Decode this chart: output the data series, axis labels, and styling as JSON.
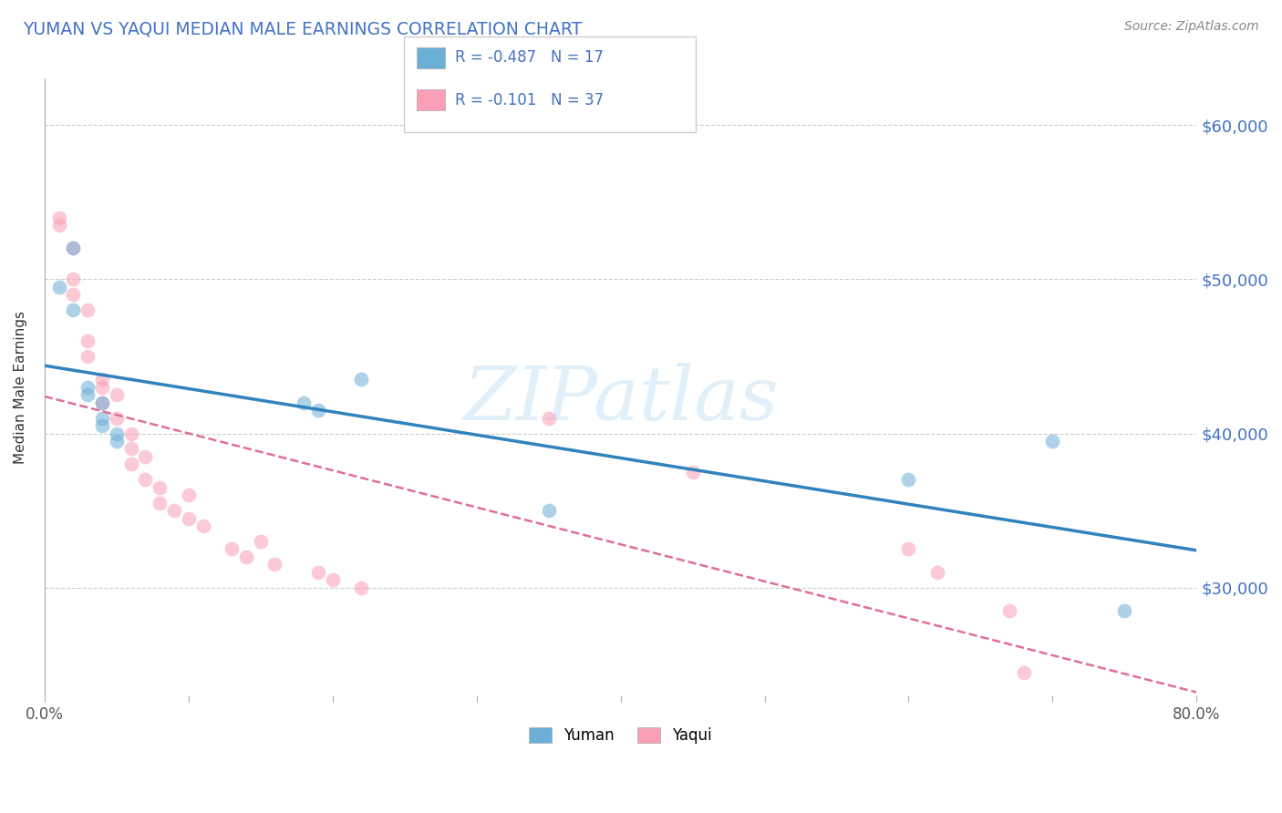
{
  "title": "YUMAN VS YAQUI MEDIAN MALE EARNINGS CORRELATION CHART",
  "source_text": "Source: ZipAtlas.com",
  "ylabel": "Median Male Earnings",
  "watermark": "ZIPatlas",
  "xlim": [
    0.0,
    0.8
  ],
  "ylim": [
    23000,
    63000
  ],
  "yticks": [
    30000,
    40000,
    50000,
    60000
  ],
  "ytick_labels": [
    "$30,000",
    "$40,000",
    "$50,000",
    "$60,000"
  ],
  "xticks": [
    0.0,
    0.1,
    0.2,
    0.3,
    0.4,
    0.5,
    0.6,
    0.7,
    0.8
  ],
  "xtick_labels": [
    "0.0%",
    "",
    "",
    "",
    "",
    "",
    "",
    "",
    "80.0%"
  ],
  "yuman_color": "#6baed6",
  "yaqui_color": "#fa9fb5",
  "yuman_line_color": "#3182bd",
  "yaqui_line_color": "#e07090",
  "legend_R_yuman": "R = -0.487",
  "legend_N_yuman": "N = 17",
  "legend_R_yaqui": "R = -0.101",
  "legend_N_yaqui": "N = 37",
  "yuman_x": [
    0.01,
    0.02,
    0.02,
    0.03,
    0.03,
    0.04,
    0.04,
    0.04,
    0.05,
    0.05,
    0.18,
    0.19,
    0.22,
    0.35,
    0.6,
    0.7,
    0.75
  ],
  "yuman_y": [
    49500,
    48000,
    52000,
    43000,
    42500,
    42000,
    41000,
    40500,
    39500,
    40000,
    42000,
    41500,
    43500,
    35000,
    37000,
    39500,
    28500
  ],
  "yaqui_x": [
    0.01,
    0.01,
    0.02,
    0.02,
    0.02,
    0.03,
    0.03,
    0.03,
    0.04,
    0.04,
    0.04,
    0.05,
    0.05,
    0.06,
    0.06,
    0.06,
    0.07,
    0.07,
    0.08,
    0.08,
    0.09,
    0.1,
    0.1,
    0.11,
    0.13,
    0.14,
    0.15,
    0.16,
    0.19,
    0.2,
    0.22,
    0.35,
    0.45,
    0.6,
    0.62,
    0.67,
    0.68
  ],
  "yaqui_y": [
    54000,
    53500,
    52000,
    50000,
    49000,
    48000,
    46000,
    45000,
    43500,
    43000,
    42000,
    41000,
    42500,
    40000,
    39000,
    38000,
    38500,
    37000,
    36500,
    35500,
    35000,
    36000,
    34500,
    34000,
    32500,
    32000,
    33000,
    31500,
    31000,
    30500,
    30000,
    41000,
    37500,
    32500,
    31000,
    28500,
    24500
  ],
  "background_color": "#ffffff",
  "grid_color": "#cccccc",
  "title_color": "#4472c4",
  "ytick_color": "#4472c4",
  "marker_size": 130,
  "marker_alpha": 0.55
}
